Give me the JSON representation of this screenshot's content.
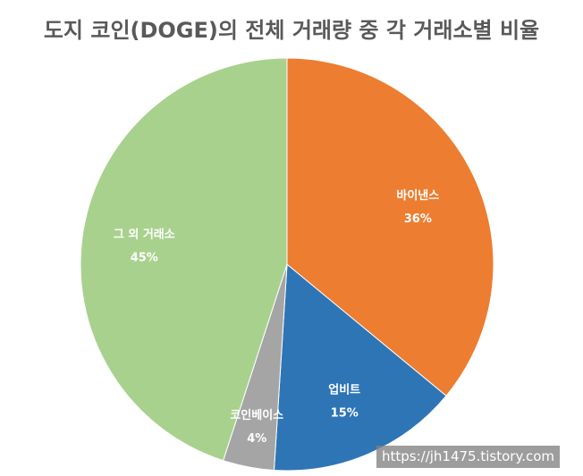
{
  "chart_data": {
    "type": "pie",
    "title": "도지 코인(DOGE)의 전체 거래량 중 각 거래소별 비율",
    "slices": [
      {
        "label": "바이낸스",
        "value": 36,
        "value_label": "36%",
        "color": "#ED7D31"
      },
      {
        "label": "업비트",
        "value": 15,
        "value_label": "15%",
        "color": "#2E75B6"
      },
      {
        "label": "코인베이스",
        "value": 4,
        "value_label": "4%",
        "color": "#A5A5A5"
      },
      {
        "label": "그 외 거래소",
        "value": 45,
        "value_label": "45%",
        "color": "#A9D18E"
      }
    ],
    "start_angle_deg": 0,
    "direction": "clockwise",
    "legend": "none"
  },
  "watermark": "https://jh1475.tistory.com"
}
